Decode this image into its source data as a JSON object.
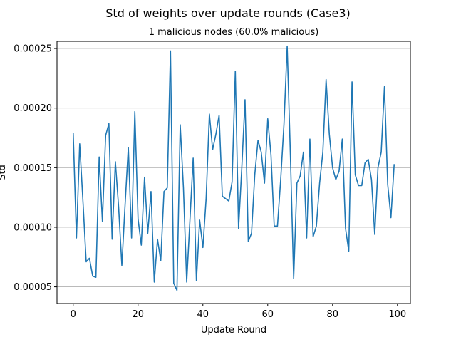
{
  "figure": {
    "suptitle": "Std of weights over update rounds (Case3)",
    "title": "1 malicious nodes (60.0% malicious)",
    "xlabel": "Update Round",
    "ylabel": "Std"
  },
  "chart_data": {
    "type": "line",
    "title": "1 malicious nodes (60.0% malicious)",
    "xlabel": "Update Round",
    "ylabel": "Std",
    "xlim": [
      -5,
      104
    ],
    "ylim": [
      3.6e-05,
      0.000256
    ],
    "grid": "y",
    "color": "#1f77b4",
    "x_ticks": [
      0,
      20,
      40,
      60,
      80,
      100
    ],
    "x_tick_labels": [
      "0",
      "20",
      "40",
      "60",
      "80",
      "100"
    ],
    "y_ticks": [
      5e-05,
      0.0001,
      0.00015,
      0.0002,
      0.00025
    ],
    "y_tick_labels": [
      "0.00005",
      "0.00010",
      "0.00015",
      "0.00020",
      "0.00025"
    ],
    "series": [
      {
        "x": [
          0,
          1,
          2,
          3,
          4,
          5,
          6,
          7,
          8,
          9,
          10,
          11,
          12,
          13,
          14,
          15,
          16,
          17,
          18,
          19,
          20,
          21,
          22,
          23,
          24,
          25,
          26,
          27,
          28,
          29,
          30,
          31,
          32,
          33,
          34,
          35,
          36,
          37,
          38,
          39,
          40,
          41,
          42,
          43,
          44,
          45,
          46,
          47,
          48,
          49,
          50,
          51,
          52,
          53,
          54,
          55,
          56,
          57,
          58,
          59,
          60,
          61,
          62,
          63,
          64,
          65,
          66,
          67,
          68,
          69,
          70,
          71,
          72,
          73,
          74,
          75,
          76,
          77,
          78,
          79,
          80,
          81,
          82,
          83,
          84,
          85,
          86,
          87,
          88,
          89,
          90,
          91,
          92,
          93,
          94,
          95,
          96,
          97,
          98,
          99
        ],
        "values": [
          0.000179,
          9.1e-05,
          0.00017,
          0.000122,
          7.1e-05,
          7.4e-05,
          5.9e-05,
          5.8e-05,
          0.000159,
          0.000105,
          0.000177,
          0.000187,
          9e-05,
          0.000155,
          0.000117,
          6.8e-05,
          0.000119,
          0.000167,
          9.1e-05,
          0.000197,
          0.000107,
          8.5e-05,
          0.000142,
          9.5e-05,
          0.00013,
          5.4e-05,
          9e-05,
          7.2e-05,
          0.00013,
          0.000133,
          0.000248,
          5.3e-05,
          4.7e-05,
          0.000186,
          0.000133,
          5.4e-05,
          0.000106,
          0.000158,
          5.5e-05,
          0.000106,
          8.3e-05,
          0.000124,
          0.000195,
          0.000165,
          0.000178,
          0.000194,
          0.000126,
          0.000124,
          0.000122,
          0.000138,
          0.000231,
          9.9e-05,
          0.00015,
          0.000207,
          8.8e-05,
          9.5e-05,
          0.000144,
          0.000173,
          0.000163,
          0.000137,
          0.000191,
          0.000161,
          0.000101,
          0.000101,
          0.00014,
          0.000186,
          0.000252,
          0.00016,
          5.7e-05,
          0.000137,
          0.000143,
          0.000163,
          9.1e-05,
          0.000174,
          9.2e-05,
          0.000101,
          0.000137,
          0.000163,
          0.000224,
          0.000178,
          0.00015,
          0.00014,
          0.000147,
          0.000174,
          9.9e-05,
          8e-05,
          0.000222,
          0.000144,
          0.000135,
          0.000135,
          0.000154,
          0.000157,
          0.00014,
          9.4e-05,
          0.00015,
          0.000163,
          0.000218,
          0.000136,
          0.000108,
          0.000153
        ]
      }
    ]
  }
}
